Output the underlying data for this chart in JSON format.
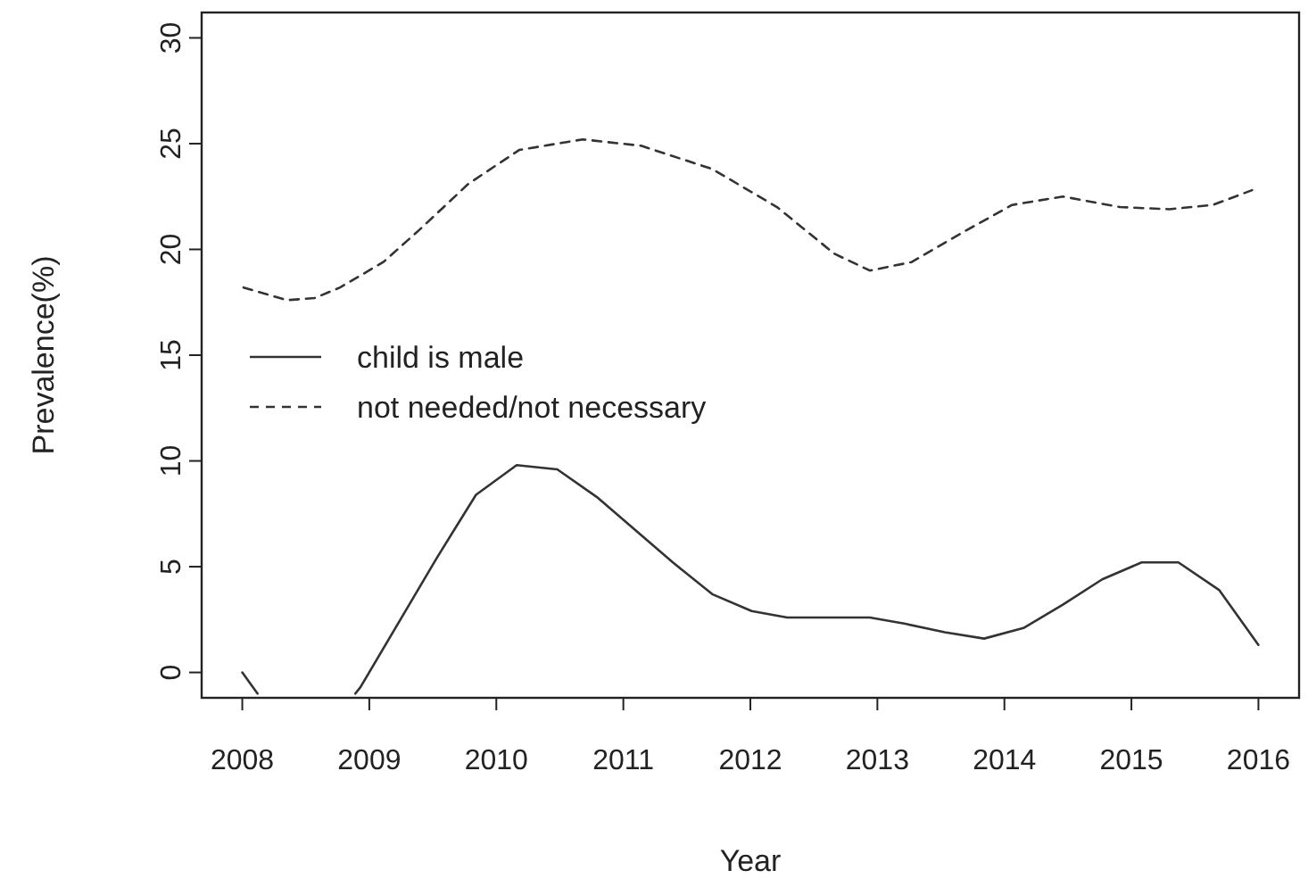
{
  "chart_data": {
    "type": "line",
    "xlabel": "Year",
    "ylabel": "Prevalence(%)",
    "xlim": [
      2007.68,
      2016.32
    ],
    "ylim": [
      -1.2,
      31.2
    ],
    "xticks": [
      2008,
      2009,
      2010,
      2011,
      2012,
      2013,
      2014,
      2015,
      2016
    ],
    "yticks": [
      0,
      5,
      10,
      15,
      20,
      25,
      30
    ],
    "legend": "left",
    "grid": false,
    "series": [
      {
        "name": "child is male",
        "color": "#333333",
        "line_style": "solid",
        "x": [
          2008,
          2008.12,
          2008.5,
          2008.89,
          2008.93,
          2009.53,
          2009.84,
          2010.16,
          2010.48,
          2010.79,
          2011.39,
          2011.7,
          2012.01,
          2012.29,
          2012.94,
          2013.22,
          2013.53,
          2013.84,
          2014.15,
          2014.46,
          2014.77,
          2015.08,
          2015.37,
          2015.69,
          2016
        ],
        "values": [
          0,
          -1,
          null,
          -1,
          -0.7,
          5.4,
          8.4,
          9.8,
          9.6,
          8.3,
          5.2,
          3.7,
          2.9,
          2.6,
          2.6,
          2.3,
          1.9,
          1.6,
          2.1,
          3.2,
          4.4,
          5.2,
          5.2,
          3.9,
          1.3
        ]
      },
      {
        "name": "not needed/not necessary",
        "color": "#333333",
        "line_style": "dashed",
        "x": [
          2008.01,
          2008.35,
          2008.57,
          2008.77,
          2009.11,
          2009.39,
          2009.78,
          2010.18,
          2010.68,
          2011.14,
          2011.7,
          2012.21,
          2012.66,
          2012.94,
          2013.27,
          2013.67,
          2014.06,
          2014.46,
          2014.91,
          2015.3,
          2015.64,
          2015.95
        ],
        "values": [
          18.2,
          17.6,
          17.7,
          18.2,
          19.4,
          20.9,
          23.1,
          24.7,
          25.2,
          24.9,
          23.8,
          22,
          19.8,
          19,
          19.4,
          20.8,
          22.1,
          22.5,
          22,
          21.9,
          22.1,
          22.8
        ]
      }
    ]
  }
}
